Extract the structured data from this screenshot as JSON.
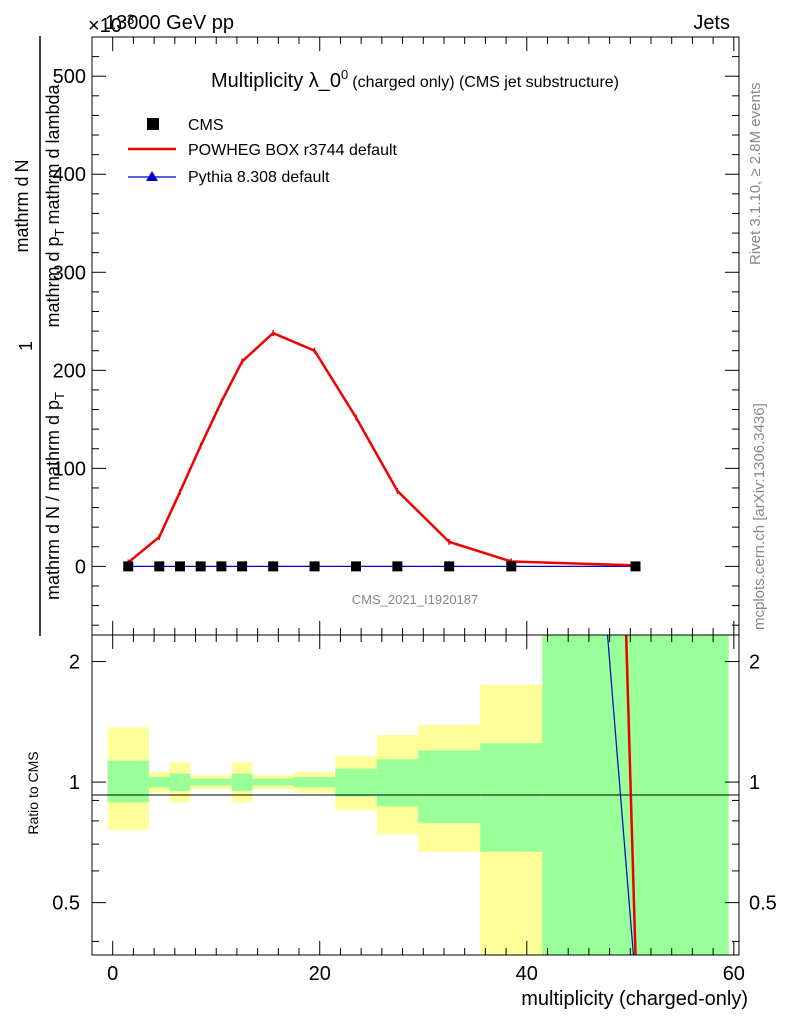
{
  "header": {
    "left": "13000 GeV pp",
    "right": "Jets",
    "exponent": "×10",
    "exponent_power": "-3"
  },
  "side_labels": {
    "rivet": "Rivet 3.1.10, ≥ 2.8M events",
    "mcplots": "mcplots.cern.ch [arXiv:1306.3436]"
  },
  "chart_data": [
    {
      "type": "line",
      "title_main": "Multiplicity λ_0",
      "title_sup": "0",
      "title_rest": "(charged only) (CMS jet substructure)",
      "ylabel": {
        "frac_num": "1",
        "frac_den": "mathrm d N / mathrm d p",
        "frac_den_sub": "T",
        "rest": "mathrm d N",
        "rest_den": "mathrm d p",
        "rest_den_sub": "T",
        "rest_tail": "mathrm d lambda",
        "line1_a": "mathrm d",
        "line1_b": "N",
        "line2_a": "mathrm d p",
        "line2_sub": "T",
        "line2_b": "mathrm d lambda",
        "num": "1",
        "den_a": "mathrm d N / mathrm d p",
        "den_sub": "T",
        "den_b": "mathrm d p",
        "den_sub2": "T",
        "den_c": "mathrm d lambda"
      },
      "ylim": [
        -70,
        540
      ],
      "xlim": [
        -2,
        60.5
      ],
      "yticks": [
        "0",
        "100",
        "200",
        "300",
        "400",
        "500"
      ],
      "watermark": "CMS_2021_I1920187",
      "legend": [
        {
          "label": "CMS",
          "marker": "square",
          "color": "#000000"
        },
        {
          "label": "POWHEG BOX r3744 default",
          "marker": "line",
          "color": "#ee0000"
        },
        {
          "label": "Pythia 8.308 default",
          "marker": "triangle",
          "color": "#0000cc"
        }
      ],
      "series": [
        {
          "name": "CMS",
          "x": [
            1.5,
            4.5,
            6.5,
            8.5,
            10.5,
            12.5,
            15.5,
            19.5,
            23.5,
            27.5,
            32.5,
            38.5,
            50.5
          ],
          "y": [
            0,
            0,
            0,
            0,
            0,
            0,
            0,
            0,
            0,
            0,
            0,
            0,
            0
          ]
        },
        {
          "name": "POWHEG BOX r3744 default",
          "x": [
            1.5,
            4.5,
            6.5,
            8.5,
            10.5,
            12.5,
            15.5,
            19.5,
            23.5,
            27.5,
            32.5,
            38.5,
            50.5
          ],
          "y": [
            4,
            30,
            76,
            123,
            168,
            209,
            238,
            220,
            152,
            77,
            25,
            5,
            1
          ]
        },
        {
          "name": "Pythia 8.308 default",
          "x": [
            1.5,
            4.5,
            6.5,
            8.5,
            10.5,
            12.5,
            15.5,
            19.5,
            23.5,
            27.5,
            32.5,
            38.5,
            50.5
          ],
          "y": [
            0,
            0,
            0,
            0,
            0,
            0,
            0,
            0,
            0,
            0,
            0,
            0,
            0
          ]
        }
      ]
    },
    {
      "type": "area",
      "ylabel": "Ratio to CMS",
      "xlabel": "multiplicity (charged-only)",
      "xlim": [
        -2,
        60.5
      ],
      "ylim": [
        0.37,
        2.33
      ],
      "xticks": [
        "0",
        "20",
        "40",
        "60"
      ],
      "yticks": [
        "0.5",
        "1",
        "2"
      ],
      "bands": {
        "bins": [
          [
            -0.5,
            3.5
          ],
          [
            3.5,
            5.5
          ],
          [
            5.5,
            7.5
          ],
          [
            7.5,
            9.5
          ],
          [
            9.5,
            11.5
          ],
          [
            11.5,
            13.5
          ],
          [
            13.5,
            17.5
          ],
          [
            17.5,
            21.5
          ],
          [
            21.5,
            25.5
          ],
          [
            25.5,
            29.5
          ],
          [
            29.5,
            35.5
          ],
          [
            35.5,
            41.5
          ],
          [
            41.5,
            59.5
          ]
        ],
        "inner_lo": [
          0.89,
          0.97,
          0.95,
          0.98,
          0.98,
          0.95,
          0.98,
          0.97,
          0.92,
          0.87,
          0.79,
          0.67,
          0.1
        ],
        "inner_hi": [
          1.13,
          1.03,
          1.05,
          1.02,
          1.02,
          1.05,
          1.02,
          1.03,
          1.08,
          1.14,
          1.2,
          1.25,
          5.0
        ],
        "outer_lo": [
          0.76,
          0.94,
          0.89,
          0.96,
          0.96,
          0.89,
          0.96,
          0.94,
          0.85,
          0.74,
          0.67,
          0.35,
          0.1
        ],
        "outer_hi": [
          1.37,
          1.06,
          1.12,
          1.04,
          1.04,
          1.12,
          1.04,
          1.06,
          1.16,
          1.31,
          1.39,
          1.75,
          5.0
        ],
        "inner_color": "#99ff99",
        "outer_color": "#ffff99"
      },
      "series": [
        {
          "name": "POWHEG BOX r3744 default",
          "x": [
            49.6,
            50.5
          ],
          "y": [
            2.33,
            0.37
          ],
          "color": "#ee0000"
        },
        {
          "name": "Pythia 8.308 default",
          "x": [
            47.8,
            50.3
          ],
          "y": [
            2.33,
            0.37
          ],
          "color": "#0000cc"
        }
      ]
    }
  ]
}
